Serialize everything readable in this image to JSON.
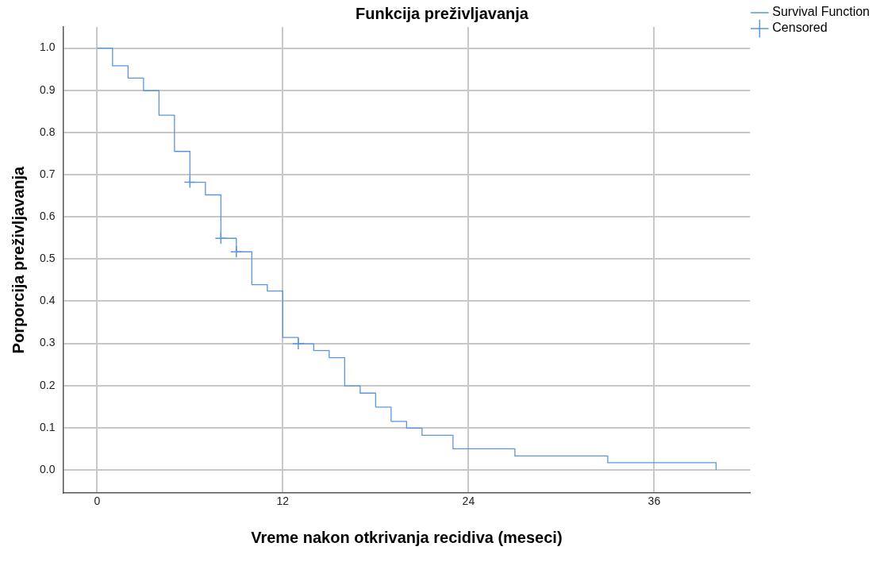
{
  "chart_data": {
    "type": "step",
    "title": "Funkcija preživljavanja",
    "xlabel": "Vreme nakon otkrivanja recidiva (meseci)",
    "ylabel": "Porporcija preživljavanja",
    "xlim": [
      -2.2,
      42.2
    ],
    "xticks": [
      0,
      12,
      24,
      36
    ],
    "ylim": [
      -0.055,
      1.05
    ],
    "yticks": [
      {
        "value": 0,
        "label": "0.0"
      },
      0.1,
      0.2,
      0.3,
      0.4,
      0.5,
      0.6,
      0.7,
      0.8,
      0.9,
      {
        "value": 1,
        "label": "1.0"
      }
    ],
    "grid": true,
    "legend": "top right",
    "series": [
      {
        "name": "Survival Function",
        "color": "#5b95e0",
        "marker": "none",
        "x": [
          0,
          1,
          2,
          3,
          4,
          5,
          6,
          7,
          8,
          9,
          10,
          11,
          12,
          13,
          14,
          15,
          16,
          17,
          18,
          19,
          20,
          21,
          23,
          27,
          33,
          40
        ],
        "values": [
          1.0,
          0.958,
          0.929,
          0.899,
          0.841,
          0.755,
          0.682,
          0.652,
          0.549,
          0.517,
          0.439,
          0.424,
          0.314,
          0.299,
          0.283,
          0.266,
          0.199,
          0.182,
          0.149,
          0.115,
          0.099,
          0.082,
          0.05,
          0.033,
          0.017,
          0
        ]
      },
      {
        "name": "Censored",
        "type": "scatter",
        "color": "#5b95e0",
        "marker": "cross",
        "x": [
          6,
          8,
          9,
          13
        ],
        "values": [
          0.682,
          0.549,
          0.517,
          0.299
        ]
      }
    ]
  }
}
